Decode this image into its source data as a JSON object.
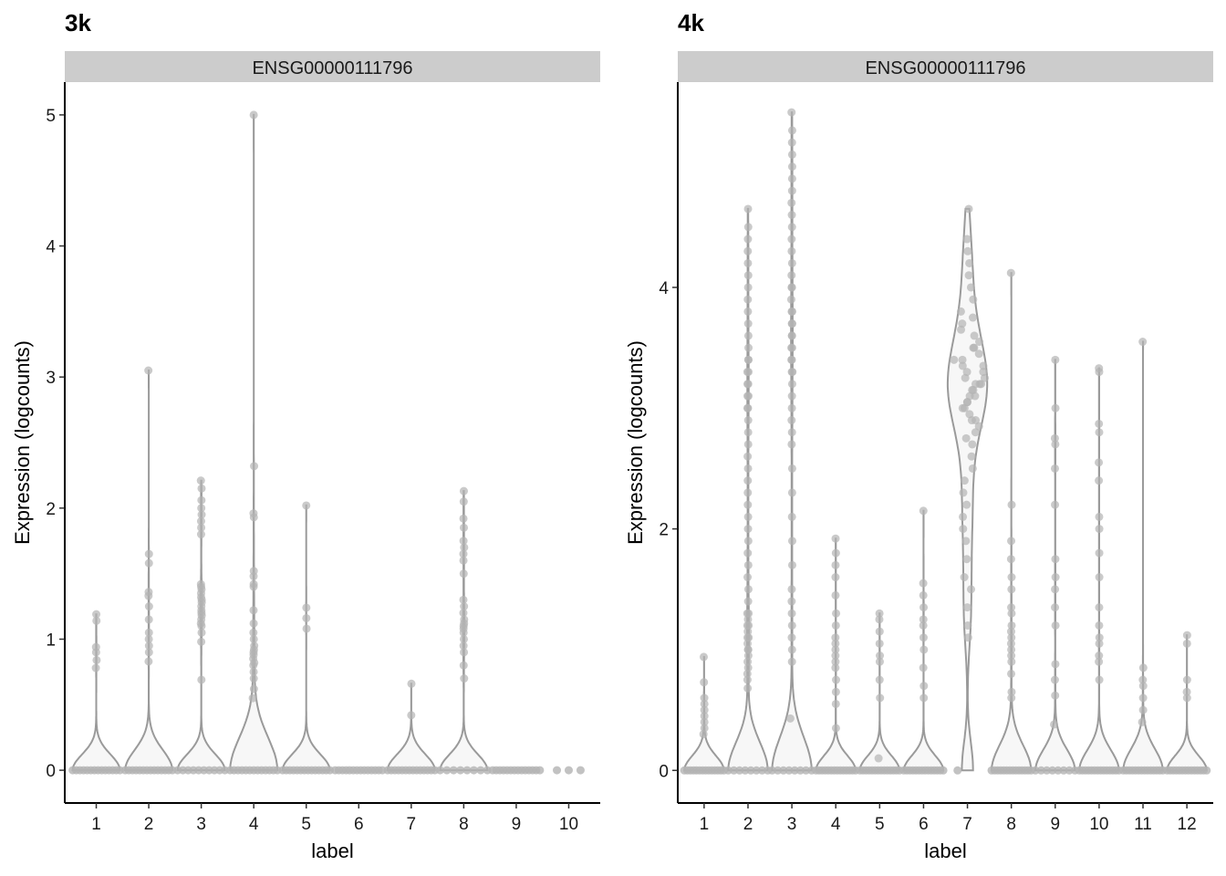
{
  "colors": {
    "violin_stroke": "#9a9a9a",
    "violin_fill": "#f7f7f7",
    "point": "#b3b3b3",
    "strip": "#cccccc"
  },
  "chart_data": [
    {
      "type": "violin",
      "title": "3k",
      "facet_label": "ENSG00000111796",
      "xlabel": "label",
      "ylabel": "Expression (logcounts)",
      "categories": [
        "1",
        "2",
        "3",
        "4",
        "5",
        "6",
        "7",
        "8",
        "9",
        "10"
      ],
      "yticks": [
        0,
        1,
        2,
        3,
        4,
        5
      ],
      "ylim": [
        -0.25,
        5.25
      ],
      "groups": [
        {
          "zeros": 300,
          "values": [
            0.78,
            0.84,
            0.9,
            0.94,
            1.14,
            1.19
          ]
        },
        {
          "zeros": 300,
          "values": [
            0.83,
            0.9,
            0.95,
            1.0,
            1.05,
            1.15,
            1.25,
            1.33,
            1.36,
            1.58,
            1.65,
            3.05
          ]
        },
        {
          "zeros": 200,
          "values": [
            0.69,
            0.98,
            1.05,
            1.1,
            1.12,
            1.15,
            1.18,
            1.2,
            1.22,
            1.25,
            1.28,
            1.3,
            1.32,
            1.35,
            1.38,
            1.4,
            1.42,
            1.8,
            1.85,
            1.9,
            1.95,
            2.0,
            2.06,
            2.15,
            2.21
          ]
        },
        {
          "zeros": 250,
          "values": [
            0.55,
            0.62,
            0.7,
            0.75,
            0.8,
            0.82,
            0.85,
            0.88,
            0.9,
            0.92,
            0.95,
            1.0,
            1.05,
            1.12,
            1.22,
            1.4,
            1.42,
            1.48,
            1.52,
            1.93,
            1.96,
            2.32,
            5.0
          ]
        },
        {
          "zeros": 300,
          "values": [
            1.08,
            1.16,
            1.24,
            2.02
          ]
        },
        {
          "zeros": 300,
          "values": []
        },
        {
          "zeros": 300,
          "values": [
            0.42,
            0.66
          ]
        },
        {
          "zeros": 150,
          "values": [
            0.7,
            0.8,
            0.9,
            0.95,
            1.0,
            1.05,
            1.08,
            1.1,
            1.12,
            1.15,
            1.2,
            1.25,
            1.3,
            1.5,
            1.6,
            1.65,
            1.7,
            1.75,
            1.85,
            1.92,
            2.05,
            2.13
          ]
        },
        {
          "zeros": 300,
          "values": []
        },
        {
          "zeros": 50,
          "values": []
        }
      ]
    },
    {
      "type": "violin",
      "title": "4k",
      "facet_label": "ENSG00000111796",
      "xlabel": "label",
      "ylabel": "Expression (logcounts)",
      "categories": [
        "1",
        "2",
        "3",
        "4",
        "5",
        "6",
        "7",
        "8",
        "9",
        "10",
        "11",
        "12"
      ],
      "yticks": [
        0,
        2,
        4
      ],
      "ylim": [
        -0.27,
        5.7
      ],
      "groups": [
        {
          "zeros": 300,
          "values": [
            0.3,
            0.35,
            0.4,
            0.45,
            0.5,
            0.55,
            0.6,
            0.73,
            0.94
          ]
        },
        {
          "zeros": 150,
          "values": [
            0.68,
            0.75,
            0.8,
            0.85,
            0.9,
            0.95,
            1.0,
            1.0,
            1.05,
            1.1,
            1.1,
            1.15,
            1.2,
            1.2,
            1.25,
            1.3,
            1.3,
            1.4,
            1.5,
            1.6,
            1.7,
            1.8,
            1.9,
            2.0,
            2.1,
            2.2,
            2.3,
            2.4,
            2.5,
            2.6,
            2.7,
            2.8,
            2.9,
            3.0,
            3.0,
            3.1,
            3.1,
            3.2,
            3.2,
            3.3,
            3.3,
            3.4,
            3.4,
            3.5,
            3.6,
            3.7,
            3.8,
            3.9,
            4.0,
            4.1,
            4.2,
            4.3,
            4.4,
            4.5,
            4.65
          ]
        },
        {
          "zeros": 150,
          "values": [
            0.43,
            0.9,
            1.0,
            1.1,
            1.2,
            1.3,
            1.4,
            1.5,
            1.7,
            1.9,
            2.1,
            2.3,
            2.5,
            2.7,
            2.8,
            2.9,
            3.0,
            3.1,
            3.2,
            3.3,
            3.3,
            3.4,
            3.4,
            3.5,
            3.5,
            3.6,
            3.6,
            3.7,
            3.7,
            3.8,
            3.8,
            3.9,
            4.0,
            4.0,
            4.1,
            4.2,
            4.3,
            4.4,
            4.5,
            4.6,
            4.7,
            4.8,
            4.9,
            5.0,
            5.1,
            5.2,
            5.3,
            5.45
          ]
        },
        {
          "zeros": 300,
          "values": [
            0.35,
            0.55,
            0.65,
            0.75,
            0.85,
            0.9,
            0.95,
            1.0,
            1.05,
            1.1,
            1.2,
            1.3,
            1.45,
            1.6,
            1.7,
            1.8,
            1.92
          ]
        },
        {
          "zeros": 300,
          "values": [
            0.1,
            0.6,
            0.75,
            0.9,
            0.95,
            1.05,
            1.15,
            1.25,
            1.3
          ]
        },
        {
          "zeros": 300,
          "values": [
            0.6,
            0.7,
            0.85,
            1.0,
            1.1,
            1.2,
            1.25,
            1.35,
            1.45,
            1.55,
            2.15
          ]
        },
        {
          "zeros": 3,
          "values": [
            1.1,
            1.2,
            1.35,
            1.5,
            1.6,
            1.75,
            1.9,
            2.0,
            2.1,
            2.2,
            2.3,
            2.4,
            2.5,
            2.6,
            2.7,
            2.75,
            2.8,
            2.85,
            2.9,
            2.9,
            2.95,
            3.0,
            3.0,
            3.05,
            3.05,
            3.1,
            3.1,
            3.15,
            3.15,
            3.2,
            3.2,
            3.2,
            3.25,
            3.25,
            3.3,
            3.3,
            3.35,
            3.35,
            3.4,
            3.4,
            3.45,
            3.5,
            3.5,
            3.55,
            3.6,
            3.65,
            3.7,
            3.75,
            3.8,
            3.9,
            4.0,
            4.1,
            4.2,
            4.3,
            4.4,
            4.65
          ]
        },
        {
          "zeros": 300,
          "values": [
            0.6,
            0.65,
            0.8,
            0.9,
            0.95,
            1.0,
            1.05,
            1.1,
            1.15,
            1.2,
            1.3,
            1.35,
            1.5,
            1.6,
            1.75,
            1.9,
            2.2,
            4.12
          ]
        },
        {
          "zeros": 150,
          "values": [
            0.38,
            0.62,
            0.75,
            0.88,
            1.2,
            1.35,
            1.5,
            1.6,
            1.75,
            2.2,
            2.5,
            2.7,
            2.75,
            3.0,
            3.4
          ]
        },
        {
          "zeros": 300,
          "values": [
            0.75,
            0.9,
            0.95,
            1.05,
            1.1,
            1.2,
            1.35,
            1.6,
            1.8,
            2.0,
            2.1,
            2.4,
            2.55,
            2.8,
            2.87,
            3.3,
            3.33
          ]
        },
        {
          "zeros": 300,
          "values": [
            0.4,
            0.5,
            0.6,
            0.7,
            0.75,
            0.85,
            3.55
          ]
        },
        {
          "zeros": 300,
          "values": [
            0.6,
            0.65,
            0.75,
            1.05,
            1.12
          ]
        }
      ]
    }
  ]
}
